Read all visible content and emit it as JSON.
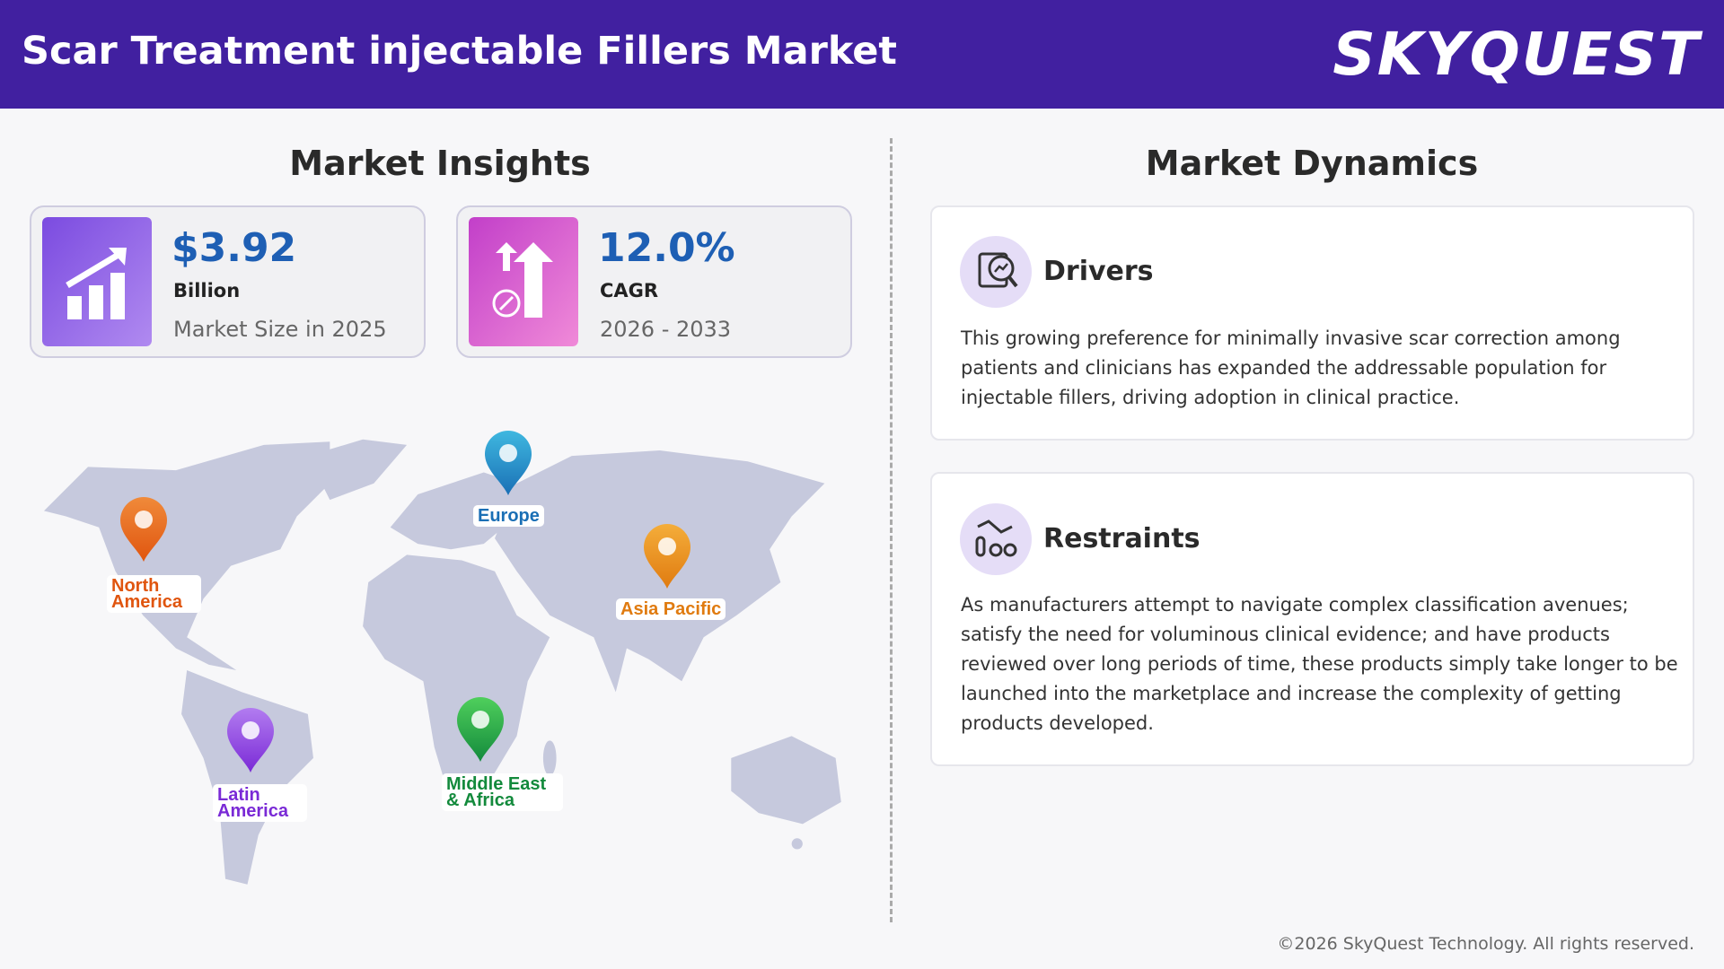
{
  "header": {
    "title": "Scar Treatment injectable Fillers Market",
    "logo": "SKYQUEST"
  },
  "insights": {
    "title": "Market Insights",
    "cards": [
      {
        "value": "$3.92",
        "unit": "Billion",
        "label": "Market Size in 2025"
      },
      {
        "value": "12.0%",
        "unit": "CAGR",
        "label": "2026 - 2033"
      }
    ],
    "regions": [
      "North America",
      "Europe",
      "Asia Pacific",
      "Latin America",
      "Middle East & Africa"
    ]
  },
  "dynamics": {
    "title": "Market Dynamics",
    "drivers": {
      "title": "Drivers",
      "text": "This growing preference for minimally invasive scar correction among patients and clinicians has expanded the addressable population for injectable fillers, driving adoption in clinical practice."
    },
    "restraints": {
      "title": "Restraints",
      "text": "As manufacturers attempt to navigate complex classification avenues; satisfy the need for voluminous clinical evidence; and have products reviewed over long periods of time, these products simply take longer to be launched into the marketplace and increase the complexity of getting products developed."
    }
  },
  "footer": "©2026 SkyQuest Technology. All rights reserved."
}
